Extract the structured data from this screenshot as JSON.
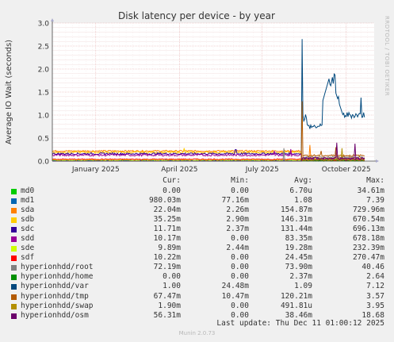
{
  "chart_data": {
    "type": "line",
    "title": "Disk latency per device - by year",
    "ylabel": "Average IO Wait (seconds)",
    "ylim": [
      0,
      3.0
    ],
    "yticks": [
      "0.0",
      "0.5",
      "1.0",
      "1.5",
      "2.0",
      "2.5",
      "3.0"
    ],
    "xticks": [
      {
        "label": "January 2025",
        "pos": 0.135
      },
      {
        "label": "April 2025",
        "pos": 0.395
      },
      {
        "label": "July 2025",
        "pos": 0.652
      },
      {
        "label": "October 2025",
        "pos": 0.913
      }
    ],
    "grid": true,
    "series": [
      {
        "name": "md0",
        "color": "#00cc00",
        "shape": "zero"
      },
      {
        "name": "md1",
        "color": "#0066b3",
        "shape": "spike",
        "base": 0.01,
        "spike": 0.02
      },
      {
        "name": "sda",
        "color": "#ff8000",
        "shape": "flat",
        "base": 0.22,
        "noise": 0.015,
        "after": 0.06,
        "spikes": [
          [
            0.8,
            0.35
          ]
        ]
      },
      {
        "name": "sdb",
        "color": "#ffcc00",
        "shape": "flat",
        "base": 0.19,
        "noise": 0.02,
        "after": 0.05,
        "spikes": [
          [
            0.41,
            0.28
          ]
        ]
      },
      {
        "name": "sdc",
        "color": "#330099",
        "shape": "flat",
        "base": 0.16,
        "noise": 0.02,
        "after": 0.04,
        "spikes": [
          [
            0.57,
            0.25
          ]
        ]
      },
      {
        "name": "sdd",
        "color": "#990099",
        "shape": "flat",
        "base": 0.13,
        "noise": 0.02,
        "after": 0.04,
        "spikes": [
          [
            0.69,
            0.22
          ],
          [
            0.74,
            0.26
          ]
        ]
      },
      {
        "name": "sde",
        "color": "#ccff00",
        "shape": "flat",
        "base": 0.02,
        "noise": 0.01,
        "after": 0.01
      },
      {
        "name": "sdf",
        "color": "#ff0000",
        "shape": "flat",
        "base": 0.04,
        "noise": 0.01,
        "after": 0.02
      },
      {
        "name": "hyperionhdd/root",
        "color": "#808080",
        "shape": "late",
        "base": 0.08,
        "spikes": [
          [
            0.72,
            0.28
          ]
        ]
      },
      {
        "name": "hyperionhdd/home",
        "color": "#008f00",
        "shape": "late",
        "base": 0.01
      },
      {
        "name": "hyperionhdd/var",
        "color": "#00487d",
        "shape": "var"
      },
      {
        "name": "hyperionhdd/tmp",
        "color": "#b35a00",
        "shape": "late",
        "base": 0.12,
        "spikes": [
          [
            0.775,
            1.3
          ],
          [
            0.835,
            0.22
          ],
          [
            0.88,
            0.3
          ]
        ]
      },
      {
        "name": "hyperionhdd/swap",
        "color": "#b38f00",
        "shape": "late",
        "base": 0.03,
        "spikes": [
          [
            0.9,
            0.28
          ]
        ]
      },
      {
        "name": "hyperionhdd/osm",
        "color": "#6b006b",
        "shape": "late",
        "base": 0.06,
        "spikes": [
          [
            0.883,
            0.4
          ],
          [
            0.94,
            0.38
          ]
        ]
      }
    ],
    "late_start": 0.775
  },
  "legend": {
    "headers": {
      "cur": "Cur:",
      "min": "Min:",
      "avg": "Avg:",
      "max": "Max:"
    },
    "rows": [
      {
        "name": "md0",
        "color": "#00cc00",
        "cur": "0.00",
        "min": "0.00",
        "avg": "6.70u",
        "max": "34.61m"
      },
      {
        "name": "md1",
        "color": "#0066b3",
        "cur": "980.03m",
        "min": "77.16m",
        "avg": "1.08",
        "max": "7.39"
      },
      {
        "name": "sda",
        "color": "#ff8000",
        "cur": "22.04m",
        "min": "2.26m",
        "avg": "154.87m",
        "max": "729.96m"
      },
      {
        "name": "sdb",
        "color": "#ffcc00",
        "cur": "35.25m",
        "min": "2.90m",
        "avg": "146.31m",
        "max": "670.54m"
      },
      {
        "name": "sdc",
        "color": "#330099",
        "cur": "11.71m",
        "min": "2.37m",
        "avg": "131.44m",
        "max": "696.13m"
      },
      {
        "name": "sdd",
        "color": "#990099",
        "cur": "10.17m",
        "min": "0.00",
        "avg": "83.35m",
        "max": "678.18m"
      },
      {
        "name": "sde",
        "color": "#ccff00",
        "cur": "9.89m",
        "min": "2.44m",
        "avg": "19.28m",
        "max": "232.39m"
      },
      {
        "name": "sdf",
        "color": "#ff0000",
        "cur": "10.22m",
        "min": "0.00",
        "avg": "24.45m",
        "max": "270.47m"
      },
      {
        "name": "hyperionhdd/root",
        "color": "#808080",
        "cur": "72.19m",
        "min": "0.00",
        "avg": "73.90m",
        "max": "40.46"
      },
      {
        "name": "hyperionhdd/home",
        "color": "#008f00",
        "cur": "0.00",
        "min": "0.00",
        "avg": "2.37m",
        "max": "2.64"
      },
      {
        "name": "hyperionhdd/var",
        "color": "#00487d",
        "cur": "1.00",
        "min": "24.48m",
        "avg": "1.09",
        "max": "7.12"
      },
      {
        "name": "hyperionhdd/tmp",
        "color": "#b35a00",
        "cur": "67.47m",
        "min": "10.47m",
        "avg": "120.21m",
        "max": "3.57"
      },
      {
        "name": "hyperionhdd/swap",
        "color": "#b38f00",
        "cur": "1.90m",
        "min": "0.00",
        "avg": "491.81u",
        "max": "3.95"
      },
      {
        "name": "hyperionhdd/osm",
        "color": "#6b006b",
        "cur": "56.31m",
        "min": "0.00",
        "avg": "38.46m",
        "max": "18.68"
      }
    ]
  },
  "last_update": "Last update: Thu Dec 11 01:00:12 2025",
  "footer": "Munin 2.0.73",
  "side_label": "RRDTOOL / TOBI OETIKER"
}
